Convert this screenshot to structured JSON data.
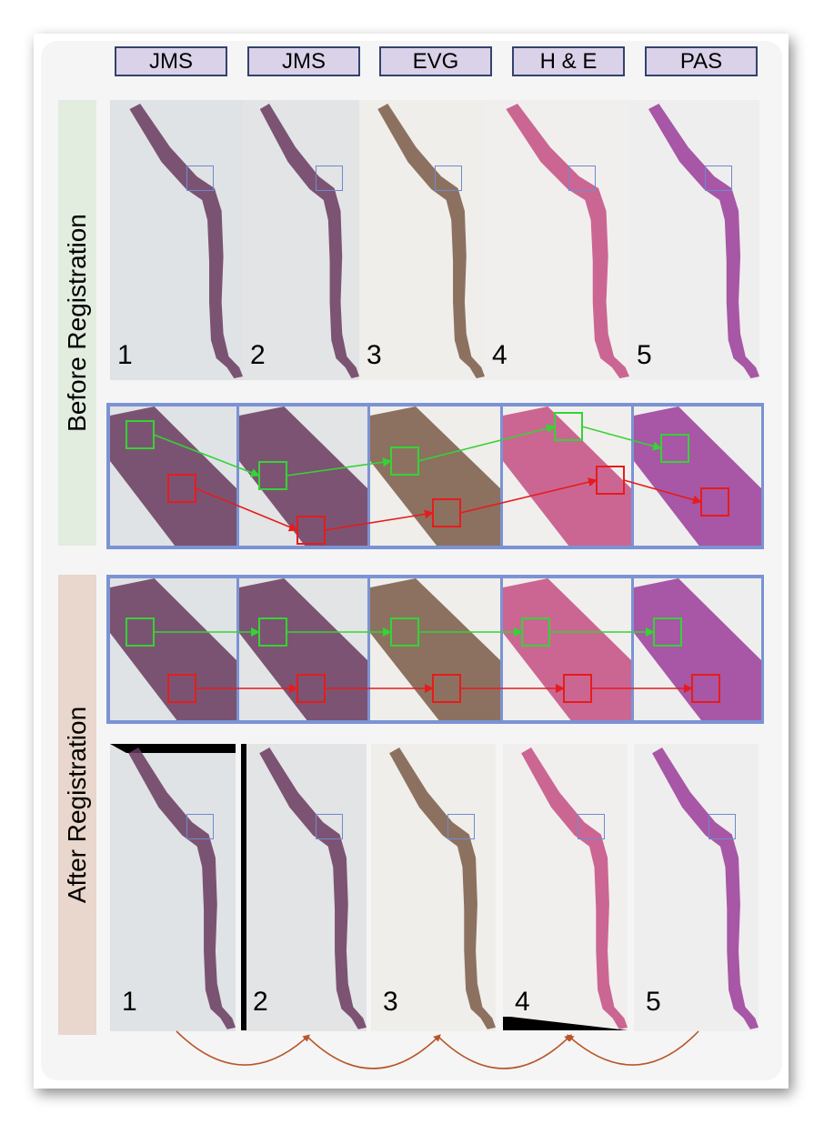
{
  "stains": [
    "JMS",
    "JMS",
    "EVG",
    "H & E",
    "PAS"
  ],
  "sections": {
    "before": "Before Registration",
    "after": "After Registration"
  },
  "slide_numbers": [
    "1",
    "2",
    "3",
    "4",
    "5"
  ],
  "colors": {
    "label_fill": "#dad2e9",
    "label_border": "#33426d",
    "before_band": "#e2ecdf",
    "after_band": "#e9d6cc",
    "roi_box": "#6f8ad1",
    "zoom_frame": "#7b93d4",
    "green_track": "#35d335",
    "red_track": "#e61c1c",
    "curve_arrows": "#b8562a",
    "stain_jms": "#6a3a5e",
    "stain_evg": "#7a5a48",
    "stain_he": "#c44d82",
    "stain_pas": "#9a3c98"
  }
}
